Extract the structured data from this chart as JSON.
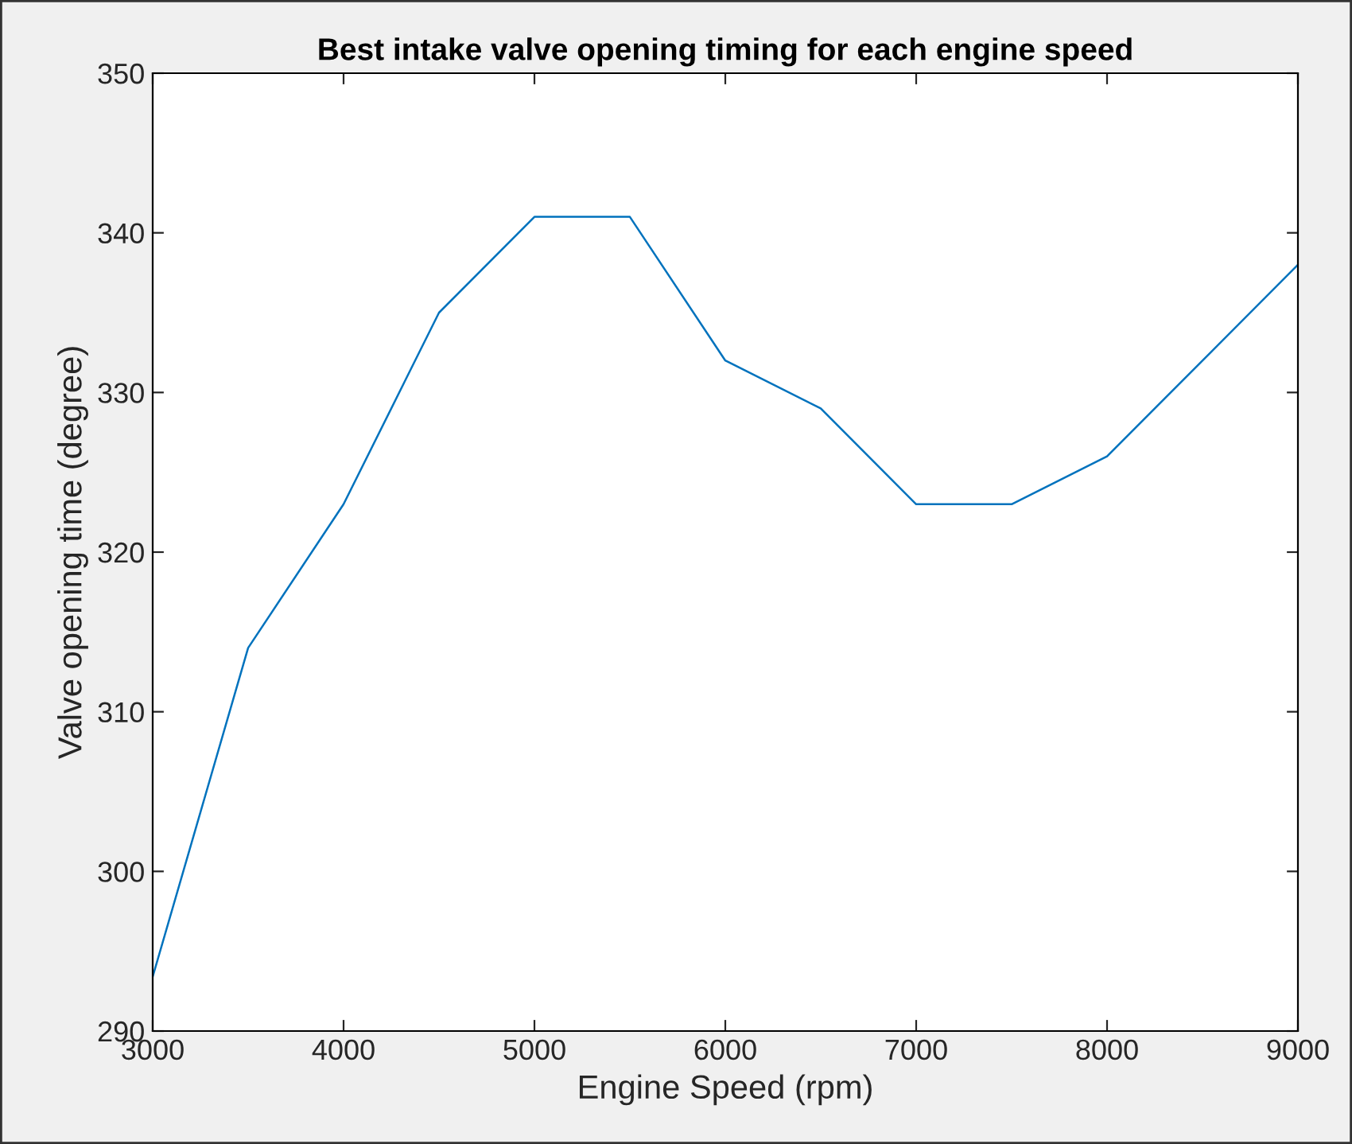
{
  "chart_data": {
    "type": "line",
    "title": "Best intake valve opening timing for each engine speed",
    "xlabel": "Engine Speed (rpm)",
    "ylabel": "Valve opening time (degree)",
    "x": [
      3000,
      3500,
      4000,
      4500,
      5000,
      5500,
      6000,
      6500,
      7000,
      7500,
      8000,
      9000
    ],
    "series": [
      {
        "color": "#0072bd",
        "values": [
          293.4,
          314,
          323,
          335,
          341,
          341,
          332,
          329,
          323,
          323,
          326,
          338
        ]
      }
    ],
    "xlim": [
      3000,
      9000
    ],
    "xticks": [
      3000,
      4000,
      5000,
      6000,
      7000,
      8000,
      9000
    ],
    "ylim": [
      290,
      350
    ],
    "yticks": [
      290,
      300,
      310,
      320,
      330,
      340,
      350
    ],
    "grid": false,
    "legend": false,
    "marker": "none",
    "line_style": "solid"
  }
}
